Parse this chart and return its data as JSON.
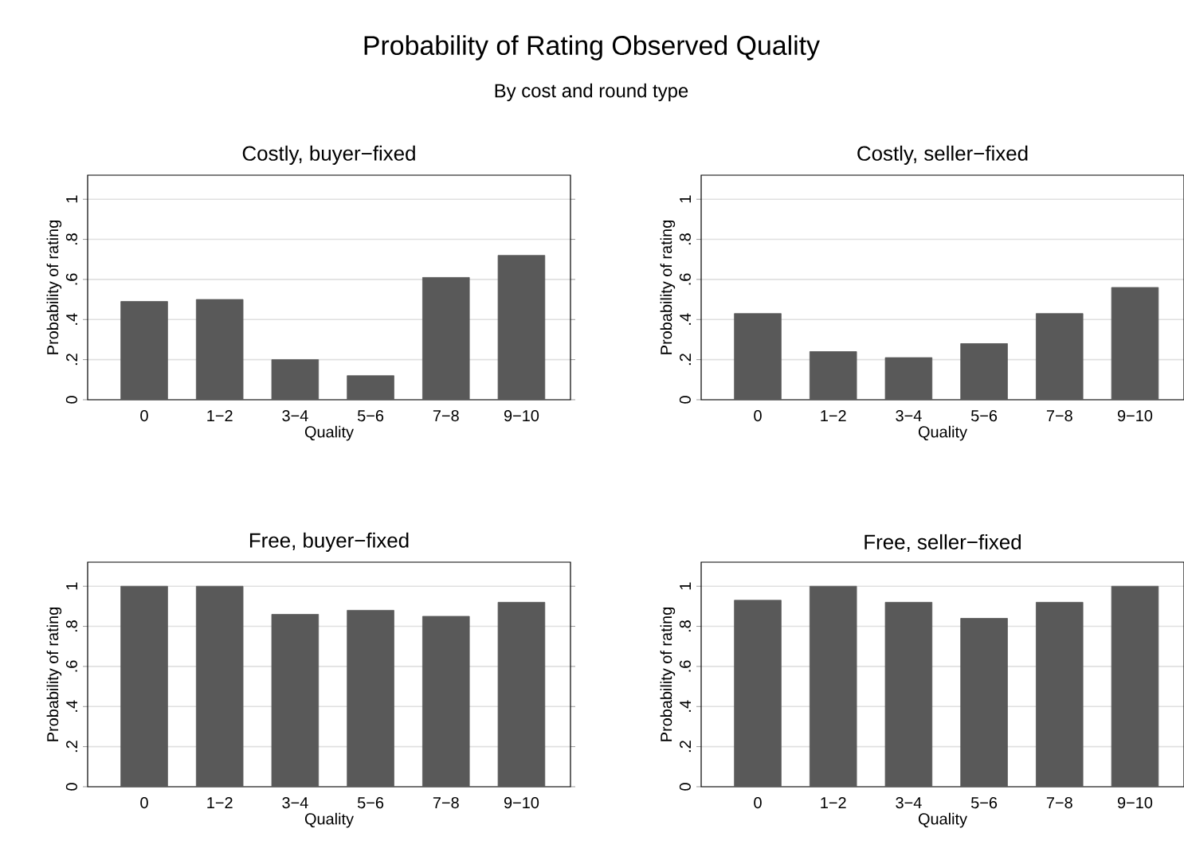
{
  "chart_data": [
    {
      "type": "other",
      "title": "Probability of Rating Observed Quality",
      "subtitle": "By cost and round type"
    },
    {
      "type": "bar",
      "title": "Costly, buyer−fixed",
      "xlabel": "Quality",
      "ylabel": "Probability of rating",
      "categories": [
        "0",
        "1−2",
        "3−4",
        "5−6",
        "7−8",
        "9−10"
      ],
      "values": [
        0.49,
        0.5,
        0.2,
        0.12,
        0.61,
        0.72
      ],
      "color": "#595959",
      "ylim": [
        0,
        1.12
      ],
      "yticks": [
        0,
        {
          "value": 0.2,
          "label": ".2"
        },
        {
          "value": 0.4,
          "label": ".4"
        },
        {
          "value": 0.6,
          "label": ".6"
        },
        {
          "value": 0.8,
          "label": ".8"
        },
        1
      ],
      "grid": "y"
    },
    {
      "type": "bar",
      "title": "Costly, seller−fixed",
      "xlabel": "Quality",
      "ylabel": "Probability of rating",
      "categories": [
        "0",
        "1−2",
        "3−4",
        "5−6",
        "7−8",
        "9−10"
      ],
      "values": [
        0.43,
        0.24,
        0.21,
        0.28,
        0.43,
        0.56
      ],
      "color": "#595959",
      "ylim": [
        0,
        1.12
      ],
      "yticks": [
        0,
        {
          "value": 0.2,
          "label": ".2"
        },
        {
          "value": 0.4,
          "label": ".4"
        },
        {
          "value": 0.6,
          "label": ".6"
        },
        {
          "value": 0.8,
          "label": ".8"
        },
        1
      ],
      "grid": "y"
    },
    {
      "type": "bar",
      "title": "Free, buyer−fixed",
      "xlabel": "Quality",
      "ylabel": "Probability of rating",
      "categories": [
        "0",
        "1−2",
        "3−4",
        "5−6",
        "7−8",
        "9−10"
      ],
      "values": [
        1.0,
        1.0,
        0.86,
        0.88,
        0.85,
        0.92
      ],
      "color": "#595959",
      "ylim": [
        0,
        1.12
      ],
      "yticks": [
        0,
        {
          "value": 0.2,
          "label": ".2"
        },
        {
          "value": 0.4,
          "label": ".4"
        },
        {
          "value": 0.6,
          "label": ".6"
        },
        {
          "value": 0.8,
          "label": ".8"
        },
        1
      ],
      "grid": "y"
    },
    {
      "type": "bar",
      "title": "Free, seller−fixed",
      "xlabel": "Quality",
      "ylabel": "Probability of rating",
      "categories": [
        "0",
        "1−2",
        "3−4",
        "5−6",
        "7−8",
        "9−10"
      ],
      "values": [
        0.93,
        1.0,
        0.92,
        0.84,
        0.92,
        1.0
      ],
      "color": "#595959",
      "ylim": [
        0,
        1.12
      ],
      "yticks": [
        0,
        {
          "value": 0.2,
          "label": ".2"
        },
        {
          "value": 0.4,
          "label": ".4"
        },
        {
          "value": 0.6,
          "label": ".6"
        },
        {
          "value": 0.8,
          "label": ".8"
        },
        1
      ],
      "grid": "y"
    }
  ]
}
